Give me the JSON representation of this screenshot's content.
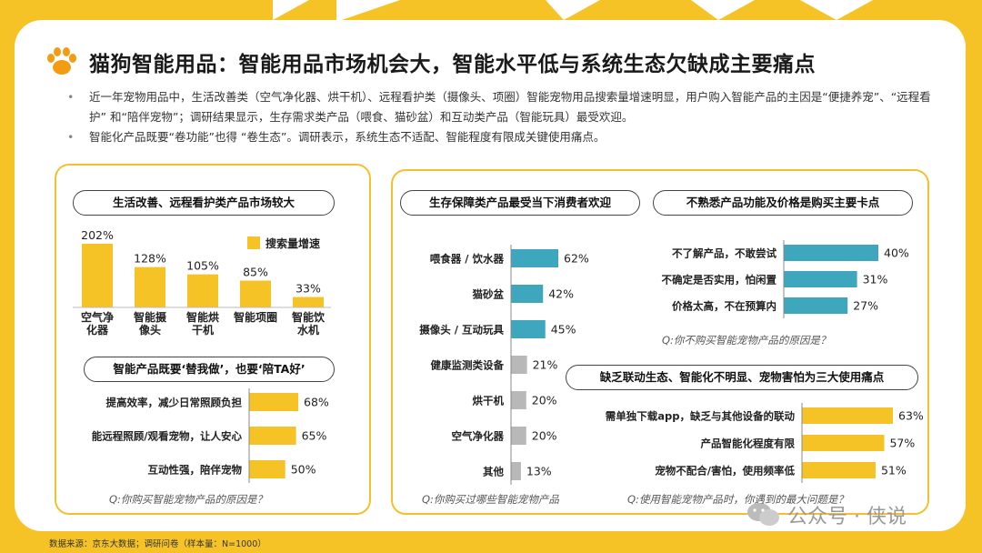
{
  "title": "猫狗智能用品：智能用品市场机会大，智能水平低与系统生态欠缺成主要痛点",
  "bullets": [
    "近一年宠物用品中，生活改善类（空气净化器、烘干机）、远程看护类（摄像头、项圈）智能宠物用品搜索量增速明显，用户购入智能产品的主因是“便捷养宠”、“远程看护” 和“陪伴宠物”；调研结果显示，生存需求类产品（喂食、猫砂盆）和互动类产品（智能玩具）最受欢迎。",
    "智能化产品既要“卷功能”也得 “卷生态”。调研表示，系统生态不适配、智能程度有限成关键使用痛点。"
  ],
  "source": "数据来源：京东大数据；调研问卷（样本量：N=1000）",
  "watermark": "公众号 · 侠说",
  "colors": {
    "yellow": "#f6c327",
    "teal": "#3ea6bd",
    "gray": "#b8b8b8",
    "text": "#222222"
  },
  "icons": {
    "title": "paw-icon",
    "watermark": "wechat-icon"
  },
  "chart_data": [
    {
      "id": "search-growth",
      "type": "bar",
      "title": "生活改善、远程看护类产品市场较大",
      "legend": "搜索量增速",
      "legend_position": "top-right",
      "categories": [
        [
          "空气净",
          "化器"
        ],
        [
          "智能摄",
          "像头"
        ],
        [
          "智能烘",
          "干机"
        ],
        [
          "智能项圈"
        ],
        [
          "智能饮",
          "水机"
        ]
      ],
      "values": [
        202,
        128,
        105,
        85,
        33
      ],
      "labels": [
        "202%",
        "128%",
        "105%",
        "85%",
        "33%"
      ],
      "ylim": [
        0,
        202
      ],
      "color": "#f6c327"
    },
    {
      "id": "purchase-reasons",
      "type": "bar",
      "orientation": "horizontal",
      "title": "智能产品既要‘替我做’，也要‘陪TA好’",
      "categories": [
        "提高效率，减少日常照顾负担",
        "能远程照顾/观看宠物，让人安心",
        "互动性强，陪伴宠物"
      ],
      "values": [
        68,
        65,
        50
      ],
      "labels": [
        "68%",
        "65%",
        "50%"
      ],
      "xlim": [
        0,
        68
      ],
      "question": "Q:你购买智能宠物产品的原因是？",
      "color": "#f6c327"
    },
    {
      "id": "products-bought",
      "type": "bar",
      "orientation": "horizontal",
      "title": "生存保障类产品最受当下消费者欢迎",
      "categories": [
        "喂食器 / 饮水器",
        "猫砂盆",
        "摄像头 / 互动玩具",
        "健康监测类设备",
        "烘干机",
        "空气净化器",
        "其他"
      ],
      "values": [
        62,
        42,
        45,
        21,
        20,
        20,
        13
      ],
      "labels": [
        "62%",
        "42%",
        "45%",
        "21%",
        "20%",
        "20%",
        "13%"
      ],
      "highlight": [
        true,
        true,
        true,
        false,
        false,
        false,
        false
      ],
      "xlim": [
        0,
        62
      ],
      "question": "Q:你购买过哪些智能宠物产品"
    },
    {
      "id": "not-buy-reasons",
      "type": "bar",
      "orientation": "horizontal",
      "title": "不熟悉产品功能及价格是购买主要卡点",
      "categories": [
        "不了解产品，不敢尝试",
        "不确定是否实用，怕闲置",
        "价格太高，不在预算内"
      ],
      "values": [
        40,
        31,
        27
      ],
      "labels": [
        "40%",
        "31%",
        "27%"
      ],
      "xlim": [
        0,
        40
      ],
      "question": "Q:你不购买智能宠物产品的原因是？",
      "color": "#3ea6bd"
    },
    {
      "id": "usage-pain-points",
      "type": "bar",
      "orientation": "horizontal",
      "title": "缺乏联动生态、智能化不明显、宠物害怕为三大使用痛点",
      "categories": [
        "需单独下载app，缺乏与其他设备的联动",
        "产品智能化程度有限",
        "宠物不配合/害怕，使用频率低"
      ],
      "values": [
        63,
        57,
        51
      ],
      "labels": [
        "63%",
        "57%",
        "51%"
      ],
      "xlim": [
        0,
        63
      ],
      "question": "Q:使用智能宠物产品时，你遇到的最大问题是？",
      "color": "#f6c327"
    }
  ]
}
